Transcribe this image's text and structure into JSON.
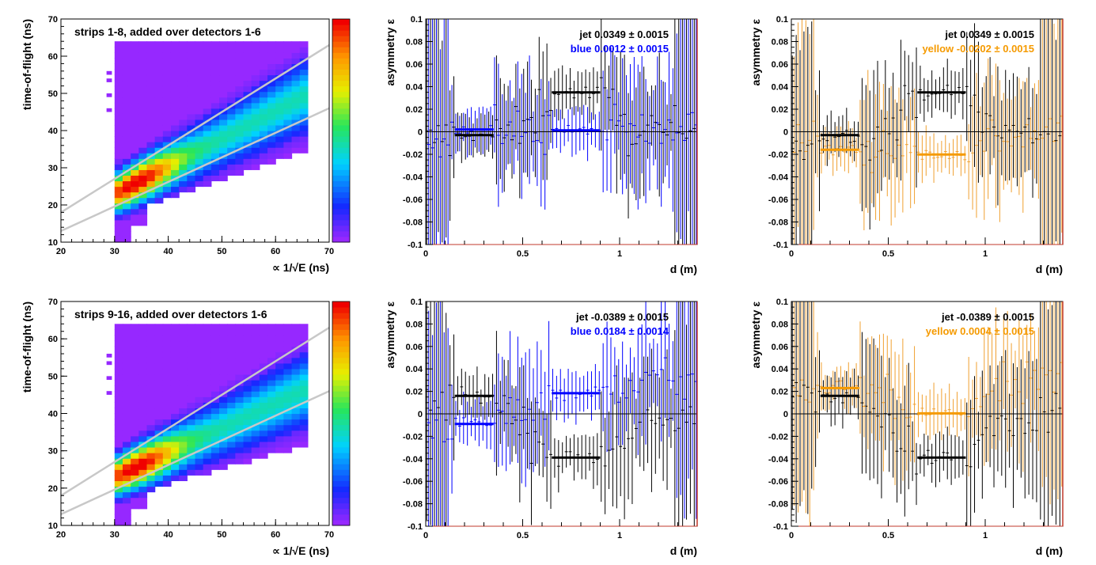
{
  "chart_data": [
    {
      "type": "heatmap",
      "title": "strips 1-8, added over detectors 1-6",
      "xlabel": "∝ 1/√E (ns)",
      "ylabel": "time-of-flight (ns)",
      "xlim": [
        20,
        70
      ],
      "ylim": [
        10,
        70
      ],
      "xticks": [
        "20",
        "30",
        "40",
        "50",
        "60",
        "70"
      ],
      "yticks": [
        "10",
        "20",
        "30",
        "40",
        "50",
        "60",
        "70"
      ],
      "band": {
        "center_at_x30": 23,
        "center_at_x65": 49,
        "peak_x": 34,
        "peak_y": 26
      },
      "cut_lines": [
        {
          "x": [
            20,
            70
          ],
          "y": [
            18,
            63
          ]
        },
        {
          "x": [
            20,
            70
          ],
          "y": [
            13,
            46
          ]
        }
      ],
      "palette": "rainbow"
    },
    {
      "type": "scatter",
      "xlabel": "d (m)",
      "ylabel": "asymmetry ε",
      "xlim": [
        0,
        1.4
      ],
      "ylim": [
        -0.1,
        0.1
      ],
      "xticks": [
        "0",
        "0.5",
        "1"
      ],
      "yticks": [
        "-0.1",
        "-0.08",
        "-0.06",
        "-0.04",
        "-0.02",
        "0",
        "0.02",
        "0.04",
        "0.06",
        "0.08",
        "0.1"
      ],
      "legend": [
        {
          "label": "jet",
          "value": "0.0349",
          "err": "0.0015",
          "color": "#000000"
        },
        {
          "label": "blue",
          "value": "0.0012",
          "err": "0.0015",
          "color": "#0000ff"
        }
      ],
      "fits": [
        {
          "x": [
            0.15,
            0.35
          ],
          "y": -0.003,
          "color": "#000000"
        },
        {
          "x": [
            0.65,
            0.9
          ],
          "y": 0.0349,
          "color": "#000000"
        },
        {
          "x": [
            0.15,
            0.35
          ],
          "y": 0.002,
          "color": "#0000ff"
        },
        {
          "x": [
            0.65,
            0.9
          ],
          "y": 0.0012,
          "color": "#0000ff"
        }
      ],
      "series": [
        {
          "color": "#000000",
          "profile": [
            [
              0,
              -0.01
            ],
            [
              0.15,
              -0.003
            ],
            [
              0.35,
              -0.003
            ],
            [
              0.5,
              0.0
            ],
            [
              0.65,
              0.0349
            ],
            [
              0.9,
              0.0349
            ],
            [
              1.05,
              0.0
            ],
            [
              1.4,
              0.0
            ]
          ]
        },
        {
          "color": "#0000ff",
          "profile": [
            [
              0,
              0.0
            ],
            [
              0.15,
              0.002
            ],
            [
              0.35,
              0.002
            ],
            [
              0.5,
              0.0
            ],
            [
              0.65,
              0.0012
            ],
            [
              0.9,
              0.0012
            ],
            [
              1.05,
              0.0
            ],
            [
              1.4,
              0.0
            ]
          ]
        }
      ]
    },
    {
      "type": "scatter",
      "xlabel": "d (m)",
      "ylabel": "asymmetry ε",
      "xlim": [
        0,
        1.4
      ],
      "ylim": [
        -0.1,
        0.1
      ],
      "xticks": [
        "0",
        "0.5",
        "1"
      ],
      "yticks": [
        "-0.1",
        "-0.08",
        "-0.06",
        "-0.04",
        "-0.02",
        "0",
        "0.02",
        "0.04",
        "0.06",
        "0.08",
        "0.1"
      ],
      "legend": [
        {
          "label": "jet",
          "value": "0.0349",
          "err": "0.0015",
          "color": "#000000"
        },
        {
          "label": "yellow",
          "value": "-0.0202",
          "err": "0.0015",
          "color": "#f59a00"
        }
      ],
      "fits": [
        {
          "x": [
            0.15,
            0.35
          ],
          "y": -0.003,
          "color": "#000000"
        },
        {
          "x": [
            0.65,
            0.9
          ],
          "y": 0.0349,
          "color": "#000000"
        },
        {
          "x": [
            0.15,
            0.35
          ],
          "y": -0.016,
          "color": "#f59a00"
        },
        {
          "x": [
            0.65,
            0.9
          ],
          "y": -0.0202,
          "color": "#f59a00"
        }
      ],
      "series": [
        {
          "color": "#000000",
          "profile": [
            [
              0,
              -0.01
            ],
            [
              0.15,
              -0.003
            ],
            [
              0.35,
              -0.003
            ],
            [
              0.5,
              0.0
            ],
            [
              0.65,
              0.0349
            ],
            [
              0.9,
              0.0349
            ],
            [
              1.05,
              0.0
            ],
            [
              1.4,
              0.0
            ]
          ]
        },
        {
          "color": "#f0a030",
          "profile": [
            [
              0,
              0.0
            ],
            [
              0.15,
              -0.016
            ],
            [
              0.35,
              -0.016
            ],
            [
              0.5,
              -0.01
            ],
            [
              0.65,
              -0.0202
            ],
            [
              0.9,
              -0.0202
            ],
            [
              1.05,
              -0.005
            ],
            [
              1.4,
              0.0
            ]
          ]
        }
      ]
    },
    {
      "type": "heatmap",
      "title": "strips 9-16, added over detectors 1-6",
      "xlabel": "∝ 1/√E (ns)",
      "ylabel": "time-of-flight (ns)",
      "xlim": [
        20,
        70
      ],
      "ylim": [
        10,
        70
      ],
      "xticks": [
        "20",
        "30",
        "40",
        "50",
        "60",
        "70"
      ],
      "yticks": [
        "10",
        "20",
        "30",
        "40",
        "50",
        "60",
        "70"
      ],
      "band": {
        "center_at_x30": 23,
        "center_at_x65": 46,
        "peak_x": 34,
        "peak_y": 25
      },
      "cut_lines": [
        {
          "x": [
            20,
            70
          ],
          "y": [
            18,
            63
          ]
        },
        {
          "x": [
            20,
            70
          ],
          "y": [
            13,
            46
          ]
        }
      ],
      "palette": "rainbow"
    },
    {
      "type": "scatter",
      "xlabel": "d (m)",
      "ylabel": "asymmetry ε",
      "xlim": [
        0,
        1.4
      ],
      "ylim": [
        -0.1,
        0.1
      ],
      "xticks": [
        "0",
        "0.5",
        "1"
      ],
      "yticks": [
        "-0.1",
        "-0.08",
        "-0.06",
        "-0.04",
        "-0.02",
        "0",
        "0.02",
        "0.04",
        "0.06",
        "0.08",
        "0.1"
      ],
      "legend": [
        {
          "label": "jet",
          "value": "-0.0389",
          "err": "0.0015",
          "color": "#000000"
        },
        {
          "label": "blue",
          "value": "0.0184",
          "err": "0.0014",
          "color": "#0000ff"
        }
      ],
      "fits": [
        {
          "x": [
            0.15,
            0.35
          ],
          "y": 0.016,
          "color": "#000000"
        },
        {
          "x": [
            0.65,
            0.9
          ],
          "y": -0.0389,
          "color": "#000000"
        },
        {
          "x": [
            0.15,
            0.35
          ],
          "y": -0.009,
          "color": "#0000ff"
        },
        {
          "x": [
            0.65,
            0.9
          ],
          "y": 0.0184,
          "color": "#0000ff"
        }
      ],
      "series": [
        {
          "color": "#000000",
          "profile": [
            [
              0,
              0.01
            ],
            [
              0.15,
              0.016
            ],
            [
              0.35,
              0.016
            ],
            [
              0.5,
              -0.01
            ],
            [
              0.65,
              -0.0389
            ],
            [
              0.9,
              -0.0389
            ],
            [
              1.05,
              -0.01
            ],
            [
              1.4,
              -0.005
            ]
          ]
        },
        {
          "color": "#0000ff",
          "profile": [
            [
              0,
              -0.005
            ],
            [
              0.15,
              -0.009
            ],
            [
              0.35,
              -0.009
            ],
            [
              0.5,
              0.005
            ],
            [
              0.65,
              0.0184
            ],
            [
              0.9,
              0.0184
            ],
            [
              1.05,
              0.03
            ],
            [
              1.4,
              0.03
            ]
          ]
        }
      ]
    },
    {
      "type": "scatter",
      "xlabel": "d (m)",
      "ylabel": "asymmetry ε",
      "xlim": [
        0,
        1.4
      ],
      "ylim": [
        -0.1,
        0.1
      ],
      "xticks": [
        "0",
        "0.5",
        "1"
      ],
      "yticks": [
        "-0.1",
        "-0.08",
        "-0.06",
        "-0.04",
        "-0.02",
        "0",
        "0.02",
        "0.04",
        "0.06",
        "0.08",
        "0.1"
      ],
      "legend": [
        {
          "label": "jet",
          "value": "-0.0389",
          "err": "0.0015",
          "color": "#000000"
        },
        {
          "label": "yellow",
          "value": "0.0004",
          "err": "0.0015",
          "color": "#f59a00"
        }
      ],
      "fits": [
        {
          "x": [
            0.15,
            0.35
          ],
          "y": 0.016,
          "color": "#000000"
        },
        {
          "x": [
            0.65,
            0.9
          ],
          "y": -0.0389,
          "color": "#000000"
        },
        {
          "x": [
            0.15,
            0.35
          ],
          "y": 0.023,
          "color": "#f59a00"
        },
        {
          "x": [
            0.65,
            0.9
          ],
          "y": 0.0004,
          "color": "#f59a00"
        }
      ],
      "series": [
        {
          "color": "#000000",
          "profile": [
            [
              0,
              0.01
            ],
            [
              0.15,
              0.016
            ],
            [
              0.35,
              0.016
            ],
            [
              0.5,
              -0.01
            ],
            [
              0.65,
              -0.0389
            ],
            [
              0.9,
              -0.0389
            ],
            [
              1.05,
              -0.01
            ],
            [
              1.4,
              -0.005
            ]
          ]
        },
        {
          "color": "#f0a030",
          "profile": [
            [
              0,
              0.01
            ],
            [
              0.15,
              0.023
            ],
            [
              0.35,
              0.023
            ],
            [
              0.5,
              0.01
            ],
            [
              0.65,
              0.0004
            ],
            [
              0.9,
              0.0004
            ],
            [
              1.05,
              0.02
            ],
            [
              1.4,
              0.03
            ]
          ]
        }
      ]
    }
  ]
}
